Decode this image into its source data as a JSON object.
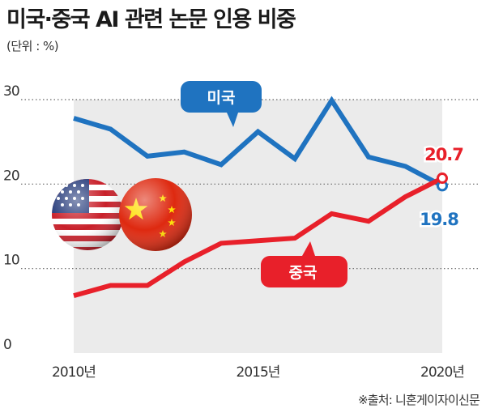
{
  "title": "미국·중국 AI 관련 논문 인용 비중",
  "unit": "(단위 : %)",
  "source": "※출처: 니혼게이자이신문",
  "colors": {
    "us": "#1f73c0",
    "china": "#e8202a",
    "plot_area": "#ebebeb",
    "gridline": "#666666"
  },
  "chart_data": {
    "type": "line",
    "title": "미국·중국 AI 관련 논문 인용 비중",
    "xlabel": "",
    "ylabel": "",
    "unit": "%",
    "x": [
      2010,
      2011,
      2012,
      2013,
      2014,
      2015,
      2016,
      2017,
      2018,
      2019,
      2020
    ],
    "xticks": [
      {
        "value": 2010,
        "label": "2010년"
      },
      {
        "value": 2015,
        "label": "2015년"
      },
      {
        "value": 2020,
        "label": "2020년"
      }
    ],
    "yticks": [
      {
        "value": 0,
        "label": "0"
      },
      {
        "value": 10,
        "label": "10"
      },
      {
        "value": 20,
        "label": "20"
      },
      {
        "value": 30,
        "label": "30"
      }
    ],
    "ylim": [
      0,
      30
    ],
    "grid": "dotted horizontal",
    "series": [
      {
        "name": "미국",
        "values": [
          27.8,
          26.5,
          23.3,
          23.8,
          22.3,
          26.2,
          23.0,
          29.9,
          23.2,
          22.1,
          19.8
        ],
        "end_label": "19.8"
      },
      {
        "name": "중국",
        "values": [
          6.8,
          8.0,
          8.0,
          10.8,
          13.0,
          13.3,
          13.6,
          16.5,
          15.6,
          18.5,
          20.7
        ],
        "end_label": "20.7"
      }
    ]
  }
}
